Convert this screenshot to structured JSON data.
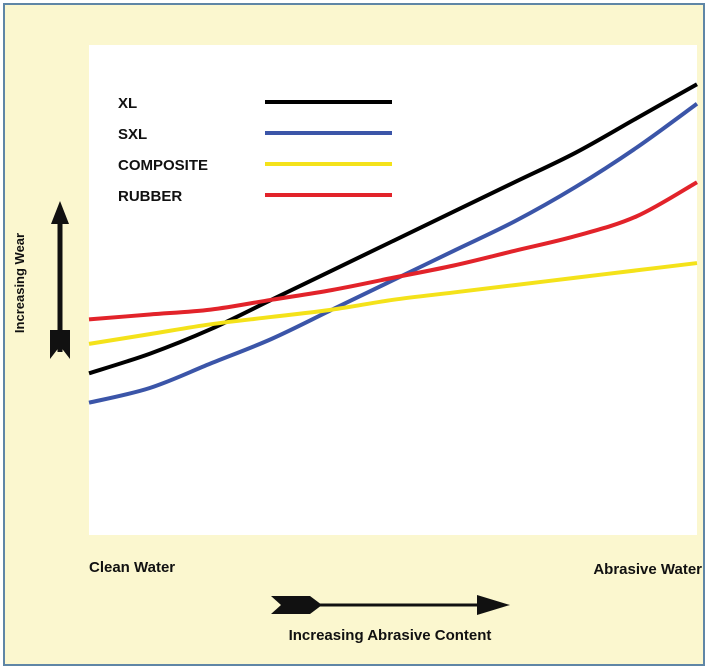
{
  "chart_data": {
    "type": "line",
    "xlabel": "Increasing Abrasive Content",
    "ylabel": "Increasing Wear",
    "x_start_label": "Clean Water",
    "x_end_label": "Abrasive Water",
    "xlim": [
      0,
      100
    ],
    "ylim": [
      0,
      100
    ],
    "grid": false,
    "legend_position": "top-left",
    "x": [
      0,
      10,
      20,
      30,
      40,
      50,
      60,
      70,
      80,
      90,
      100
    ],
    "series": [
      {
        "name": "XL",
        "color": "#000000",
        "values": [
          33,
          37,
          42,
          48,
          54,
          60,
          66,
          72,
          78,
          85,
          92
        ]
      },
      {
        "name": "SXL",
        "color": "#3b55a8",
        "values": [
          27,
          30,
          35,
          40,
          46,
          52,
          58,
          64,
          71,
          79,
          88
        ]
      },
      {
        "name": "COMPOSITE",
        "color": "#f4e21a",
        "values": [
          39,
          41,
          43,
          44.5,
          46,
          48,
          49.5,
          51,
          52.5,
          54,
          55.5
        ]
      },
      {
        "name": "RUBBER",
        "color": "#e2232a",
        "values": [
          44,
          45,
          46,
          48,
          50,
          52.5,
          55,
          58,
          61,
          65,
          72
        ]
      }
    ]
  }
}
